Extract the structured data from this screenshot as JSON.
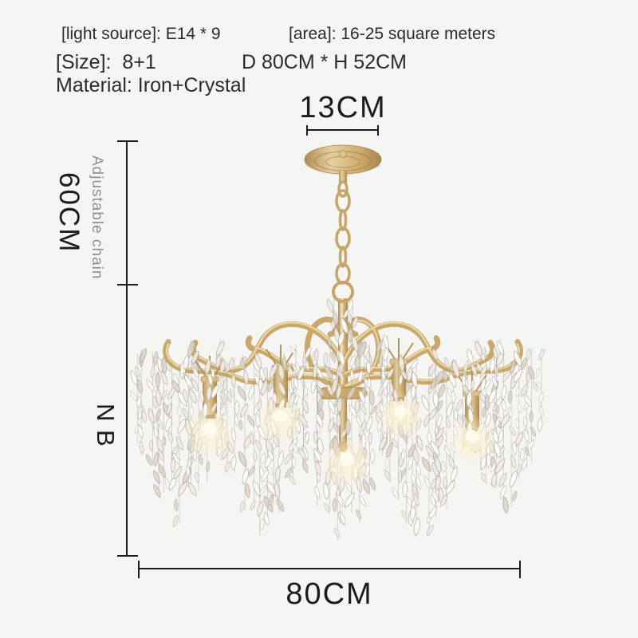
{
  "product_specs": {
    "light_source": "[light source]: E14 * 9",
    "area": "[area]: 16-25 square meters",
    "size_label": "[Size]:  8+1",
    "size_dimensions": "D 80CM * H 52CM",
    "material": "Material: Iron+Crystal"
  },
  "dimension_labels": {
    "canopy_width": "13CM",
    "chain_length": "60CM",
    "chain_note": "Adjustable chain",
    "body_mark": "N B",
    "fixture_width": "80CM"
  },
  "product_visual": {
    "description": "gold iron chandelier with cascading crystal leaf strands, 9 candle lights",
    "finish": "brushed gold",
    "crystal_color": "clear"
  },
  "colors": {
    "background": "#f5f5f4",
    "text": "#2b2b2b",
    "dimension_line": "#1c1c1c",
    "muted_text": "#8f8f8f",
    "gold": "#c9a869",
    "gold_dark": "#a8854e",
    "gold_light": "#e7d1a0",
    "crystal": "#efebe3",
    "glow": "#ffedc2"
  }
}
